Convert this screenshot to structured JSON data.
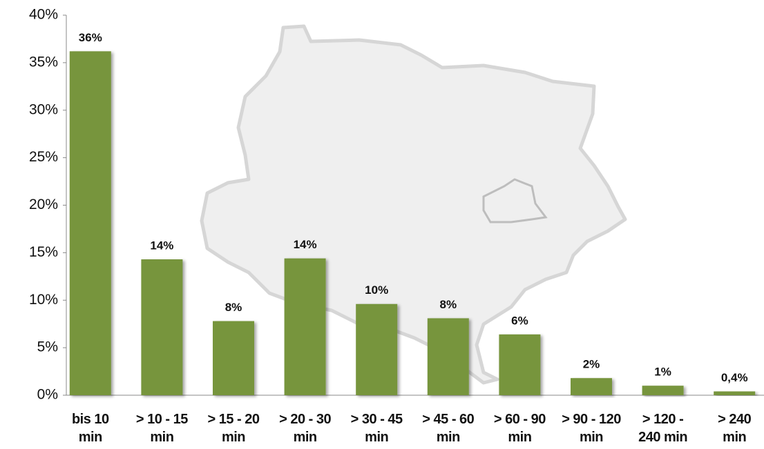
{
  "chart_data": {
    "type": "bar",
    "categories": [
      "bis 10\nmin",
      "> 10 - 15\nmin",
      "> 15 - 20\nmin",
      "> 20 - 30\nmin",
      "> 30 - 45\nmin",
      "> 45 - 60\nmin",
      "> 60 - 90\nmin",
      "> 90 - 120\nmin",
      "> 120 -\n240 min",
      "> 240\nmin"
    ],
    "values": [
      36.2,
      14.3,
      7.8,
      14.4,
      9.6,
      8.1,
      6.4,
      1.8,
      1.0,
      0.4
    ],
    "value_labels": [
      "36%",
      "14%",
      "8%",
      "14%",
      "10%",
      "8%",
      "6%",
      "2%",
      "1%",
      "0,4%"
    ],
    "color": "#77953d",
    "ylim": [
      0,
      40
    ],
    "yticks": [
      {
        "value": 0,
        "label": "0%"
      },
      {
        "value": 5,
        "label": "5%"
      },
      {
        "value": 10,
        "label": "10%"
      },
      {
        "value": 15,
        "label": "15%"
      },
      {
        "value": 20,
        "label": "20%"
      },
      {
        "value": 25,
        "label": "25%"
      },
      {
        "value": 30,
        "label": "30%"
      },
      {
        "value": 35,
        "label": "35%"
      },
      {
        "value": 40,
        "label": "40%"
      }
    ],
    "grid": false
  }
}
